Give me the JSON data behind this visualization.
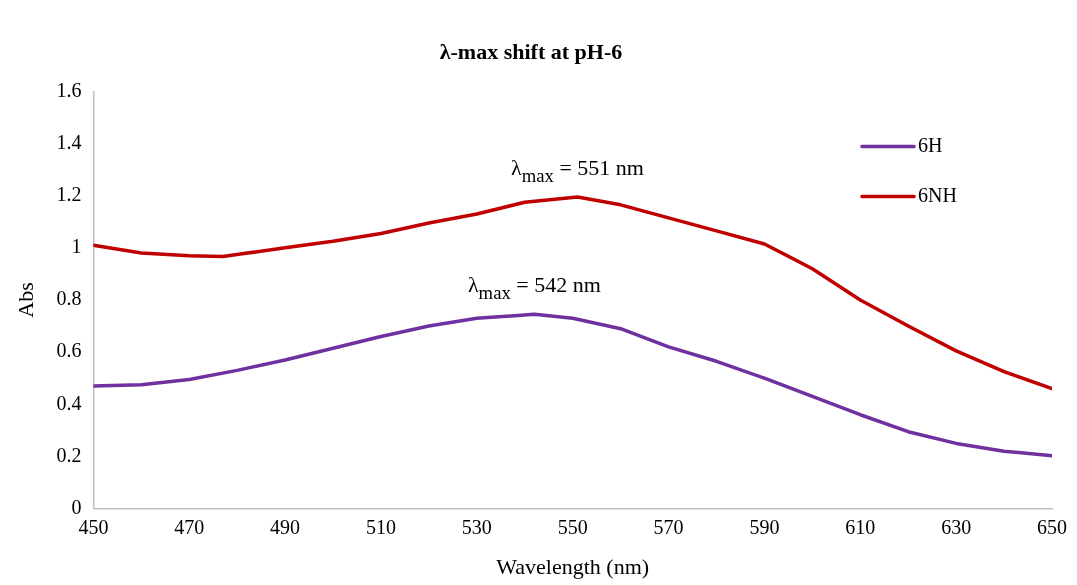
{
  "chart_data": {
    "type": "line",
    "title": "λ-max shift at pH-6",
    "xlabel": "Wavelength (nm)",
    "ylabel": "Abs",
    "xlim": [
      450,
      650
    ],
    "xticks": [
      450,
      470,
      490,
      510,
      530,
      550,
      570,
      590,
      610,
      630,
      650
    ],
    "ylim": [
      0,
      1.6
    ],
    "yticks": [
      0,
      0.2,
      0.4,
      0.6,
      0.8,
      1,
      1.2,
      1.4,
      1.6
    ],
    "grid": false,
    "legend": "top right",
    "marker": "none",
    "series": [
      {
        "name": "6H",
        "color": "#7030a0",
        "x": [
          450,
          460,
          470,
          480,
          490,
          500,
          510,
          520,
          530,
          542,
          550,
          560,
          570,
          580,
          590,
          600,
          610,
          620,
          630,
          640,
          650
        ],
        "values": [
          0.47,
          0.475,
          0.495,
          0.53,
          0.57,
          0.615,
          0.66,
          0.7,
          0.73,
          0.745,
          0.73,
          0.69,
          0.62,
          0.565,
          0.5,
          0.43,
          0.36,
          0.295,
          0.25,
          0.22,
          0.203
        ]
      },
      {
        "name": "6NH",
        "color": "#c00000",
        "x": [
          450,
          460,
          470,
          477,
          490,
          500,
          510,
          520,
          530,
          540,
          551,
          560,
          570,
          580,
          590,
          600,
          610,
          620,
          630,
          640,
          650
        ],
        "values": [
          1.01,
          0.98,
          0.97,
          0.967,
          1.0,
          1.025,
          1.055,
          1.095,
          1.13,
          1.175,
          1.195,
          1.165,
          1.115,
          1.065,
          1.015,
          0.92,
          0.8,
          0.7,
          0.605,
          0.525,
          0.46
        ]
      }
    ],
    "annotations": [
      "λ$_{max}$ = 542 nm",
      "λ$_{max}$ = 551 nm"
    ]
  }
}
